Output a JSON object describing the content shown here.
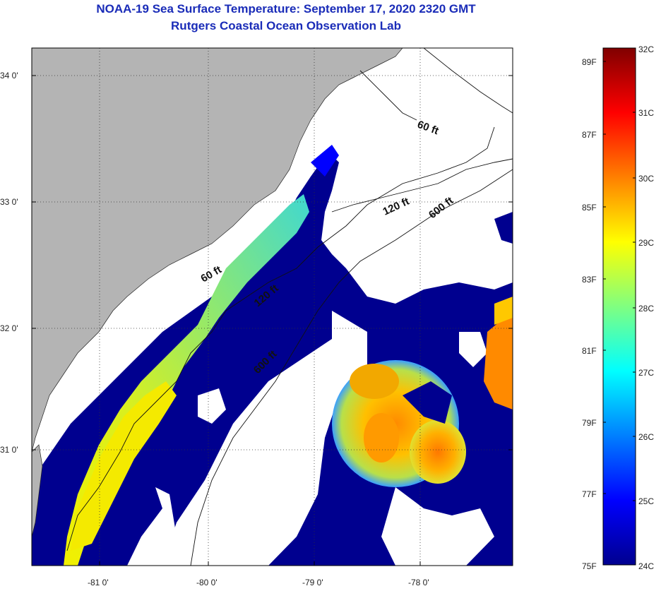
{
  "title_line1": "NOAA-19 Sea Surface Temperature:  September 17, 2020 2320 GMT",
  "title_line2": "Rutgers Coastal Ocean Observation Lab",
  "lat_labels": [
    "34 0'",
    "33 0'",
    "32 0'",
    "31 0'"
  ],
  "lon_labels": [
    "-81 0'",
    "-80 0'",
    "-79 0'",
    "-78 0'"
  ],
  "contour_labels": {
    "north_60": "60 ft",
    "north_120": "120 ft",
    "north_600": "600 ft",
    "south_60": "60 ft",
    "south_120": "120 ft",
    "south_600": "600 ft"
  },
  "colorbar": {
    "celsius": [
      "32C",
      "31C",
      "30C",
      "29C",
      "28C",
      "27C",
      "26C",
      "25C",
      "24C"
    ],
    "fahrenheit": [
      "89F",
      "87F",
      "85F",
      "83F",
      "81F",
      "79F",
      "77F",
      "75F"
    ]
  },
  "colors": {
    "title": "#1a2cb8",
    "land": "#b4b4b4",
    "cold": "#00008f",
    "warm": "#ff8c00"
  }
}
